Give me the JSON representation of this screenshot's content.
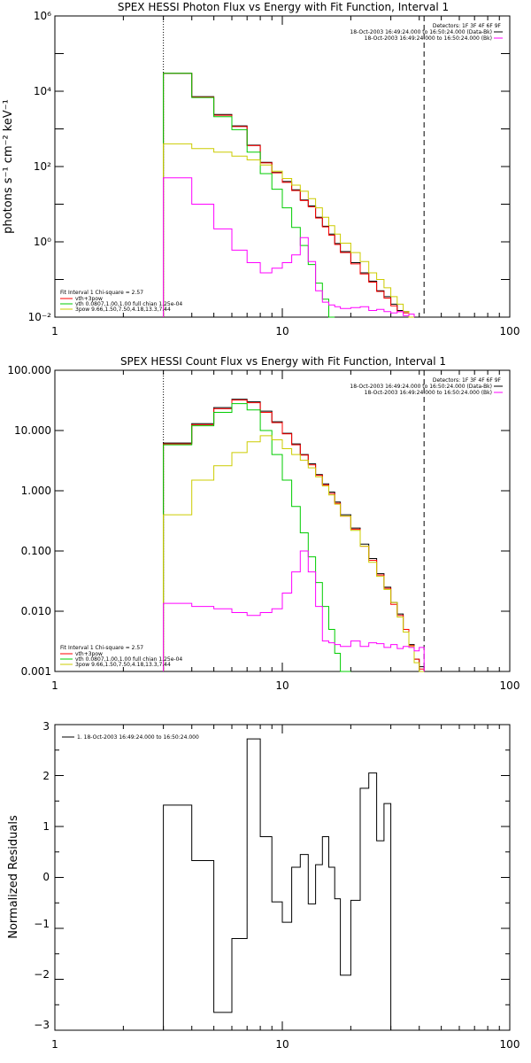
{
  "chart_data": [
    {
      "type": "line",
      "title": "SPEX HESSI Photon Flux vs Energy with Fit Function, Interval 1",
      "xlabel": "",
      "ylabel": "photons s⁻¹ cm⁻² keV⁻¹",
      "xscale": "log",
      "yscale": "log",
      "xlim": [
        1,
        100
      ],
      "ylim": [
        0.01,
        1000000
      ],
      "x_ticks": [
        "1",
        "10",
        "100"
      ],
      "y_ticks": [
        "10⁻²",
        "10⁰",
        "10²",
        "10⁴",
        "10⁶"
      ],
      "vlines": [
        {
          "x": 3,
          "style": "dotted"
        },
        {
          "x": 42,
          "style": "dashed"
        }
      ],
      "legend_top_right": [
        "Detectors: 1F 3F 4F 6F 9F",
        "18-Oct-2003 16:49:24.000 to 16:50:24.000 (Data-Bk)",
        "18-Oct-2003 16:49:24.000 to 16:50:24.000 (Bk)"
      ],
      "legend_bottom_left": [
        "Fit Interval 1    Chi-square = 2.57",
        "vth+3pow",
        "vth 0.0807,1.00,1.00  full chian 1.25e-04",
        "3pow 9.66,1.50,7.50,4.18,13.3,7.44"
      ],
      "bin_edges": [
        3,
        4,
        5,
        6,
        7,
        8,
        9,
        10,
        11,
        12,
        13,
        14,
        15,
        16,
        17,
        18,
        20,
        22,
        24,
        26,
        28,
        30,
        32,
        34,
        36,
        38,
        40,
        42
      ],
      "series": [
        {
          "name": "Data-Bk",
          "color": "#000000",
          "values": [
            30000,
            7200,
            2400,
            1200,
            370,
            130,
            70,
            40,
            24,
            13,
            9,
            4.5,
            2.6,
            1.6,
            0.9,
            0.55,
            0.28,
            0.15,
            0.09,
            0.05,
            0.035,
            0.022,
            0.015,
            0.014
          ]
        },
        {
          "name": "vth+3pow",
          "color": "#ff0000",
          "values": [
            30000,
            7000,
            2300,
            1150,
            360,
            125,
            68,
            38,
            23,
            12.5,
            8.5,
            4.3,
            2.5,
            1.5,
            0.85,
            0.52,
            0.26,
            0.14,
            0.085,
            0.048,
            0.032,
            0.02,
            0.014,
            0.013
          ]
        },
        {
          "name": "vth",
          "color": "#00cc00",
          "values": [
            30000,
            6800,
            2100,
            950,
            240,
            65,
            25,
            8,
            2.4,
            0.8,
            0.25,
            0.08,
            0.03,
            0.01
          ]
        },
        {
          "name": "3pow",
          "color": "#cccc00",
          "values": [
            400,
            300,
            240,
            190,
            150,
            110,
            75,
            48,
            32,
            22,
            14,
            8,
            4.5,
            2.7,
            1.6,
            0.92,
            0.52,
            0.3,
            0.15,
            0.1,
            0.06,
            0.035,
            0.022,
            0.014,
            0.01
          ]
        },
        {
          "name": "Bk",
          "color": "#ff00ff",
          "values": [
            50,
            10,
            2.2,
            0.6,
            0.28,
            0.15,
            0.2,
            0.28,
            0.45,
            1.3,
            0.3,
            0.05,
            0.025,
            0.021,
            0.019,
            0.017,
            0.018,
            0.019,
            0.015,
            0.016,
            0.014,
            0.013,
            0.014,
            0.011,
            0.012
          ]
        }
      ]
    },
    {
      "type": "line",
      "title": "SPEX HESSI Count Flux vs Energy with Fit Function, Interval 1",
      "xlabel": "",
      "ylabel": "",
      "xscale": "log",
      "yscale": "log",
      "xlim": [
        1,
        100
      ],
      "ylim": [
        0.001,
        100
      ],
      "x_ticks": [
        "1",
        "10",
        "100"
      ],
      "y_ticks": [
        "0.001",
        "0.010",
        "0.100",
        "1.000",
        "10.000",
        "100.000"
      ],
      "vlines": [
        {
          "x": 3,
          "style": "dotted"
        },
        {
          "x": 42,
          "style": "dashed"
        }
      ],
      "legend_top_right": [
        "Detectors: 1F 3F 4F 6F 9F",
        "18-Oct-2003 16:49:24.000 to 16:50:24.000 (Data-Bk)",
        "18-Oct-2003 16:49:24.000 to 16:50:24.000 (Bk)"
      ],
      "legend_bottom_left": [
        "Fit Interval 1    Chi-square = 2.57",
        "vth+3pow",
        "vth 0.0807,1.00,1.00  full chian 1.25e-04",
        "3pow 9.66,1.50,7.50,4.18,13.3,7.44"
      ],
      "bin_edges": [
        3,
        4,
        5,
        6,
        7,
        8,
        9,
        10,
        11,
        12,
        13,
        14,
        15,
        16,
        17,
        18,
        20,
        22,
        24,
        26,
        28,
        30,
        32,
        34,
        36,
        38,
        40,
        42
      ],
      "series": [
        {
          "name": "Data-Bk",
          "color": "#000000",
          "values": [
            6.2,
            13,
            24,
            33,
            30,
            21,
            14,
            9,
            6,
            4,
            2.8,
            1.85,
            1.3,
            0.95,
            0.65,
            0.4,
            0.24,
            0.13,
            0.075,
            0.042,
            0.025,
            0.014,
            0.009,
            0.005,
            0.0028,
            0.0016,
            0.0012
          ]
        },
        {
          "name": "vth+3pow",
          "color": "#ff0000",
          "values": [
            6,
            12.5,
            23,
            32,
            29,
            20,
            13.5,
            8.8,
            5.8,
            3.9,
            2.7,
            1.8,
            1.25,
            0.9,
            0.62,
            0.38,
            0.23,
            0.12,
            0.07,
            0.04,
            0.024,
            0.013,
            0.0085,
            0.005,
            0.0027,
            0.0016,
            0.0011
          ]
        },
        {
          "name": "vth",
          "color": "#00cc00",
          "values": [
            5.8,
            12,
            20,
            28,
            22,
            10,
            4,
            1.5,
            0.55,
            0.2,
            0.08,
            0.03,
            0.012,
            0.005,
            0.002,
            0.001
          ]
        },
        {
          "name": "3pow",
          "color": "#cccc00",
          "values": [
            0.4,
            1.5,
            2.6,
            4.3,
            6.5,
            8.2,
            7,
            5,
            4,
            3.2,
            2.4,
            1.7,
            1.2,
            0.85,
            0.6,
            0.38,
            0.22,
            0.12,
            0.065,
            0.038,
            0.023,
            0.014,
            0.008,
            0.0045,
            0.0026,
            0.0014,
            0.001
          ]
        },
        {
          "name": "Bk",
          "color": "#ff00ff",
          "values": [
            0.0135,
            0.012,
            0.011,
            0.0095,
            0.0085,
            0.0095,
            0.011,
            0.02,
            0.045,
            0.1,
            0.045,
            0.012,
            0.0032,
            0.003,
            0.0028,
            0.0026,
            0.0032,
            0.0026,
            0.003,
            0.0029,
            0.0025,
            0.0028,
            0.0024,
            0.0026,
            0.0025,
            0.0022,
            0.0025
          ]
        }
      ]
    },
    {
      "type": "line",
      "title": "",
      "xlabel": "",
      "ylabel": "Normalized Residuals",
      "xscale": "log",
      "yscale": "linear",
      "xlim": [
        1,
        100
      ],
      "ylim": [
        -3,
        3
      ],
      "x_ticks": [
        "1",
        "10",
        "100"
      ],
      "y_ticks": [
        "−3",
        "−2",
        "−1",
        "0",
        "1",
        "2",
        "3"
      ],
      "legend": [
        "1. 18-Oct-2003 16:49:24.000 to 16:50:24.000"
      ],
      "bin_edges": [
        3,
        4,
        5,
        6,
        7,
        8,
        9,
        10,
        11,
        12,
        13,
        14,
        15,
        16,
        17,
        18,
        20,
        22,
        24,
        26,
        28,
        30,
        32,
        34,
        36,
        38,
        40,
        42
      ],
      "series": [
        {
          "name": "1. 18-Oct-2003 16:49:24.000 to 16:50:24.000",
          "color": "#000000",
          "values": [
            1.42,
            0.33,
            -2.65,
            -1.2,
            2.72,
            0.8,
            -0.48,
            -0.88,
            0.2,
            0.45,
            -0.52,
            0.25,
            0.8,
            0.2,
            -0.42,
            -1.92,
            -0.45,
            1.75,
            2.05,
            0.72,
            1.45
          ]
        }
      ]
    }
  ]
}
